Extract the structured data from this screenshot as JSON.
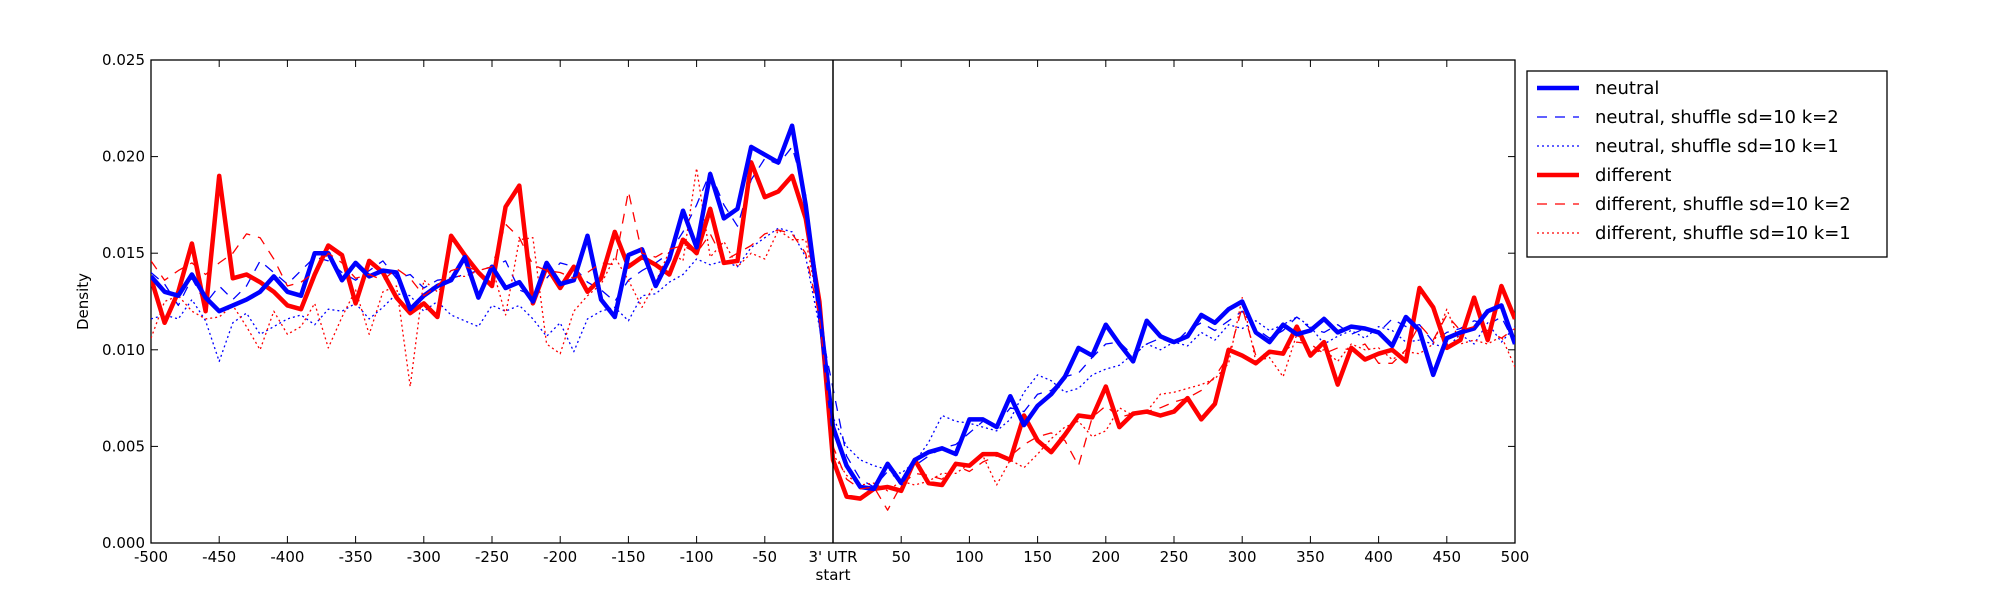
{
  "chart_data": {
    "type": "line",
    "xlabel": "",
    "ylabel": "Density",
    "xlim": [
      -500,
      500
    ],
    "ylim": [
      0,
      0.025
    ],
    "x_ticks": [
      {
        "value": -500,
        "label": "-500"
      },
      {
        "value": -450,
        "label": "-450"
      },
      {
        "value": -400,
        "label": "-400"
      },
      {
        "value": -350,
        "label": "-350"
      },
      {
        "value": -300,
        "label": "-300"
      },
      {
        "value": -250,
        "label": "-250"
      },
      {
        "value": -200,
        "label": "-200"
      },
      {
        "value": -150,
        "label": "-150"
      },
      {
        "value": -100,
        "label": "-100"
      },
      {
        "value": -50,
        "label": "-50"
      },
      {
        "value": 0,
        "label": "3' UTR"
      },
      {
        "value": 50,
        "label": "50"
      },
      {
        "value": 100,
        "label": "100"
      },
      {
        "value": 150,
        "label": "150"
      },
      {
        "value": 200,
        "label": "200"
      },
      {
        "value": 250,
        "label": "250"
      },
      {
        "value": 300,
        "label": "300"
      },
      {
        "value": 350,
        "label": "350"
      },
      {
        "value": 400,
        "label": "400"
      },
      {
        "value": 450,
        "label": "450"
      },
      {
        "value": 500,
        "label": "500"
      }
    ],
    "x_subtick_label": {
      "value": 0,
      "label": "start"
    },
    "y_ticks": [
      {
        "value": 0.0,
        "label": "0.000"
      },
      {
        "value": 0.005,
        "label": "0.005"
      },
      {
        "value": 0.01,
        "label": "0.010"
      },
      {
        "value": 0.015,
        "label": "0.015"
      },
      {
        "value": 0.02,
        "label": "0.020"
      },
      {
        "value": 0.025,
        "label": "0.025"
      }
    ],
    "vline": {
      "x": 0,
      "color": "#000000"
    },
    "grid": false,
    "legend_position": "outside-top-right",
    "x": [
      -500,
      -490,
      -480,
      -470,
      -460,
      -450,
      -440,
      -430,
      -420,
      -410,
      -400,
      -390,
      -380,
      -370,
      -360,
      -350,
      -340,
      -330,
      -320,
      -310,
      -300,
      -290,
      -280,
      -270,
      -260,
      -250,
      -240,
      -230,
      -220,
      -210,
      -200,
      -190,
      -180,
      -170,
      -160,
      -150,
      -140,
      -130,
      -120,
      -110,
      -100,
      -90,
      -80,
      -70,
      -60,
      -50,
      -40,
      -30,
      -20,
      -10,
      0,
      10,
      20,
      30,
      40,
      50,
      60,
      70,
      80,
      90,
      100,
      110,
      120,
      130,
      140,
      150,
      160,
      170,
      180,
      190,
      200,
      210,
      220,
      230,
      240,
      250,
      260,
      270,
      280,
      290,
      300,
      310,
      320,
      330,
      340,
      350,
      360,
      370,
      380,
      390,
      400,
      410,
      420,
      430,
      440,
      450,
      460,
      470,
      480,
      490,
      500
    ],
    "series": [
      {
        "name": "neutral",
        "color": "#0000ff",
        "style": "solid",
        "width": 4.5,
        "values": [
          0.0138,
          0.013,
          0.0128,
          0.0139,
          0.0127,
          0.012,
          0.0123,
          0.0126,
          0.013,
          0.0138,
          0.013,
          0.0128,
          0.015,
          0.015,
          0.0136,
          0.0145,
          0.0138,
          0.0141,
          0.014,
          0.0121,
          0.0128,
          0.0133,
          0.0136,
          0.0148,
          0.0127,
          0.0143,
          0.0132,
          0.0135,
          0.0125,
          0.0145,
          0.0134,
          0.0136,
          0.0159,
          0.0126,
          0.0117,
          0.0149,
          0.0152,
          0.0133,
          0.0147,
          0.0172,
          0.0153,
          0.0191,
          0.0168,
          0.0173,
          0.0205,
          0.0201,
          0.0197,
          0.0216,
          0.0175,
          0.012,
          0.006,
          0.004,
          0.0029,
          0.0028,
          0.0041,
          0.0031,
          0.0043,
          0.0047,
          0.0049,
          0.0046,
          0.0064,
          0.0064,
          0.006,
          0.0076,
          0.0061,
          0.0071,
          0.0077,
          0.0086,
          0.0101,
          0.0097,
          0.0113,
          0.0103,
          0.0094,
          0.0115,
          0.0107,
          0.0104,
          0.0107,
          0.0118,
          0.0114,
          0.0121,
          0.0125,
          0.0109,
          0.0104,
          0.0113,
          0.0108,
          0.011,
          0.0116,
          0.0109,
          0.0112,
          0.0111,
          0.0109,
          0.0102,
          0.0117,
          0.011,
          0.0087,
          0.0106,
          0.0109,
          0.0111,
          0.012,
          0.0123,
          0.0103
        ]
      },
      {
        "name": "neutral, shuffle sd=10 k=2",
        "color": "#0000ff",
        "style": "dashed",
        "width": 1.3,
        "values": [
          0.014,
          0.0134,
          0.0123,
          0.0137,
          0.0124,
          0.0133,
          0.0126,
          0.0133,
          0.0146,
          0.014,
          0.0134,
          0.0141,
          0.0148,
          0.0146,
          0.014,
          0.0136,
          0.0141,
          0.0146,
          0.0137,
          0.0139,
          0.0132,
          0.0136,
          0.0137,
          0.0139,
          0.0141,
          0.0143,
          0.0146,
          0.0131,
          0.0128,
          0.0137,
          0.0145,
          0.0143,
          0.0135,
          0.0131,
          0.0125,
          0.0136,
          0.0141,
          0.0145,
          0.015,
          0.0161,
          0.0175,
          0.0192,
          0.0175,
          0.0164,
          0.0188,
          0.0199,
          0.0196,
          0.0205,
          0.018,
          0.0115,
          0.008,
          0.0045,
          0.0033,
          0.0029,
          0.0037,
          0.0032,
          0.004,
          0.0045,
          0.0049,
          0.0051,
          0.0057,
          0.0063,
          0.0061,
          0.007,
          0.0068,
          0.0077,
          0.0079,
          0.0086,
          0.0088,
          0.0096,
          0.0103,
          0.0104,
          0.0097,
          0.0103,
          0.0106,
          0.0103,
          0.011,
          0.0114,
          0.011,
          0.0115,
          0.012,
          0.0111,
          0.0106,
          0.011,
          0.0117,
          0.0111,
          0.0109,
          0.0113,
          0.0108,
          0.0111,
          0.0109,
          0.0116,
          0.0112,
          0.0113,
          0.0104,
          0.0109,
          0.0111,
          0.0115,
          0.0113,
          0.0117,
          0.0103
        ]
      },
      {
        "name": "neutral, shuffle sd=10 k=1",
        "color": "#0000ff",
        "style": "dotted",
        "width": 1.3,
        "values": [
          0.0116,
          0.0118,
          0.0116,
          0.0126,
          0.0115,
          0.0094,
          0.0114,
          0.0119,
          0.0108,
          0.0112,
          0.0116,
          0.0118,
          0.0113,
          0.0121,
          0.012,
          0.0124,
          0.0116,
          0.0122,
          0.0129,
          0.0128,
          0.012,
          0.0125,
          0.0118,
          0.0115,
          0.0112,
          0.0123,
          0.012,
          0.0123,
          0.0116,
          0.0107,
          0.0114,
          0.0099,
          0.0116,
          0.012,
          0.0122,
          0.0115,
          0.0128,
          0.0129,
          0.0135,
          0.0139,
          0.0147,
          0.0144,
          0.0146,
          0.0143,
          0.0153,
          0.0158,
          0.0163,
          0.0161,
          0.0148,
          0.0112,
          0.0065,
          0.005,
          0.0043,
          0.004,
          0.0038,
          0.0036,
          0.0042,
          0.0052,
          0.0066,
          0.0063,
          0.0062,
          0.006,
          0.0058,
          0.0064,
          0.0078,
          0.0087,
          0.0084,
          0.0078,
          0.008,
          0.0087,
          0.009,
          0.0092,
          0.0098,
          0.0103,
          0.01,
          0.0104,
          0.0102,
          0.0109,
          0.0105,
          0.0113,
          0.0111,
          0.0115,
          0.011,
          0.0113,
          0.0117,
          0.0112,
          0.0103,
          0.0107,
          0.011,
          0.0106,
          0.0112,
          0.011,
          0.0104,
          0.0105,
          0.0103,
          0.0101,
          0.0108,
          0.0103,
          0.0114,
          0.0104,
          0.0112
        ]
      },
      {
        "name": "different",
        "color": "#ff0000",
        "style": "solid",
        "width": 4.5,
        "values": [
          0.0137,
          0.0114,
          0.013,
          0.0155,
          0.012,
          0.019,
          0.0137,
          0.0139,
          0.0135,
          0.013,
          0.0123,
          0.0121,
          0.0139,
          0.0154,
          0.0149,
          0.0124,
          0.0146,
          0.014,
          0.0127,
          0.0119,
          0.0124,
          0.0117,
          0.0159,
          0.0149,
          0.014,
          0.0133,
          0.0174,
          0.0185,
          0.0124,
          0.0143,
          0.0132,
          0.0143,
          0.013,
          0.0137,
          0.0161,
          0.0143,
          0.0148,
          0.0144,
          0.0139,
          0.0157,
          0.015,
          0.0173,
          0.0145,
          0.0146,
          0.0197,
          0.0179,
          0.0182,
          0.019,
          0.0168,
          0.0125,
          0.0043,
          0.0024,
          0.0023,
          0.0028,
          0.0029,
          0.0027,
          0.0043,
          0.0031,
          0.003,
          0.0041,
          0.004,
          0.0046,
          0.0046,
          0.0043,
          0.0066,
          0.0053,
          0.0047,
          0.0056,
          0.0066,
          0.0065,
          0.0081,
          0.006,
          0.0067,
          0.0068,
          0.0066,
          0.0068,
          0.0075,
          0.0064,
          0.0072,
          0.01,
          0.0097,
          0.0093,
          0.0099,
          0.0098,
          0.0112,
          0.0097,
          0.0104,
          0.0082,
          0.0101,
          0.0095,
          0.0098,
          0.01,
          0.0094,
          0.0132,
          0.0122,
          0.0101,
          0.0105,
          0.0127,
          0.0105,
          0.0133,
          0.0116
        ]
      },
      {
        "name": "different, shuffle sd=10 k=2",
        "color": "#ff0000",
        "style": "dashed",
        "width": 1.3,
        "values": [
          0.0146,
          0.0136,
          0.0141,
          0.0145,
          0.0139,
          0.0145,
          0.015,
          0.016,
          0.0158,
          0.0147,
          0.0133,
          0.0135,
          0.014,
          0.015,
          0.0145,
          0.0137,
          0.0139,
          0.0136,
          0.0142,
          0.0137,
          0.0128,
          0.0133,
          0.0141,
          0.0143,
          0.0141,
          0.0143,
          0.0165,
          0.0158,
          0.0144,
          0.0141,
          0.014,
          0.0137,
          0.014,
          0.0145,
          0.0144,
          0.0182,
          0.015,
          0.0148,
          0.0152,
          0.0154,
          0.015,
          0.016,
          0.0146,
          0.015,
          0.0154,
          0.016,
          0.0162,
          0.016,
          0.015,
          0.0117,
          0.005,
          0.0033,
          0.0028,
          0.0029,
          0.0017,
          0.003,
          0.0036,
          0.0035,
          0.0033,
          0.004,
          0.0037,
          0.0042,
          0.0045,
          0.0045,
          0.0051,
          0.0055,
          0.0057,
          0.0053,
          0.004,
          0.0065,
          0.0071,
          0.0065,
          0.0067,
          0.0068,
          0.007,
          0.0073,
          0.0075,
          0.0079,
          0.0086,
          0.0097,
          0.0122,
          0.0097,
          0.0098,
          0.0099,
          0.0104,
          0.0103,
          0.0098,
          0.0101,
          0.01,
          0.0103,
          0.0093,
          0.0093,
          0.01,
          0.0113,
          0.0105,
          0.0118,
          0.011,
          0.0112,
          0.011,
          0.0106,
          0.0111
        ]
      },
      {
        "name": "different, shuffle sd=10 k=1",
        "color": "#ff0000",
        "style": "dotted",
        "width": 1.3,
        "values": [
          0.0106,
          0.0125,
          0.0128,
          0.012,
          0.0116,
          0.0117,
          0.0123,
          0.0112,
          0.01,
          0.012,
          0.0108,
          0.0112,
          0.0124,
          0.0101,
          0.0117,
          0.0131,
          0.0108,
          0.013,
          0.0133,
          0.0081,
          0.0136,
          0.013,
          0.0138,
          0.0138,
          0.0141,
          0.0143,
          0.0118,
          0.0157,
          0.0158,
          0.0103,
          0.0098,
          0.012,
          0.0128,
          0.0134,
          0.0148,
          0.0136,
          0.0122,
          0.0135,
          0.0151,
          0.0146,
          0.0194,
          0.0148,
          0.0156,
          0.0143,
          0.015,
          0.0147,
          0.0162,
          0.0157,
          0.0157,
          0.012,
          0.0046,
          0.0035,
          0.003,
          0.0031,
          0.0027,
          0.0032,
          0.003,
          0.0032,
          0.0036,
          0.0036,
          0.0041,
          0.0045,
          0.003,
          0.0043,
          0.0039,
          0.0046,
          0.0054,
          0.006,
          0.0063,
          0.0055,
          0.0058,
          0.007,
          0.0066,
          0.0068,
          0.0077,
          0.0078,
          0.008,
          0.0082,
          0.0085,
          0.0093,
          0.0127,
          0.0094,
          0.0096,
          0.0086,
          0.0108,
          0.0098,
          0.01,
          0.0094,
          0.0103,
          0.01,
          0.0101,
          0.0095,
          0.0099,
          0.0098,
          0.0103,
          0.0121,
          0.0103,
          0.0105,
          0.0103,
          0.0107,
          0.0091
        ]
      }
    ]
  }
}
